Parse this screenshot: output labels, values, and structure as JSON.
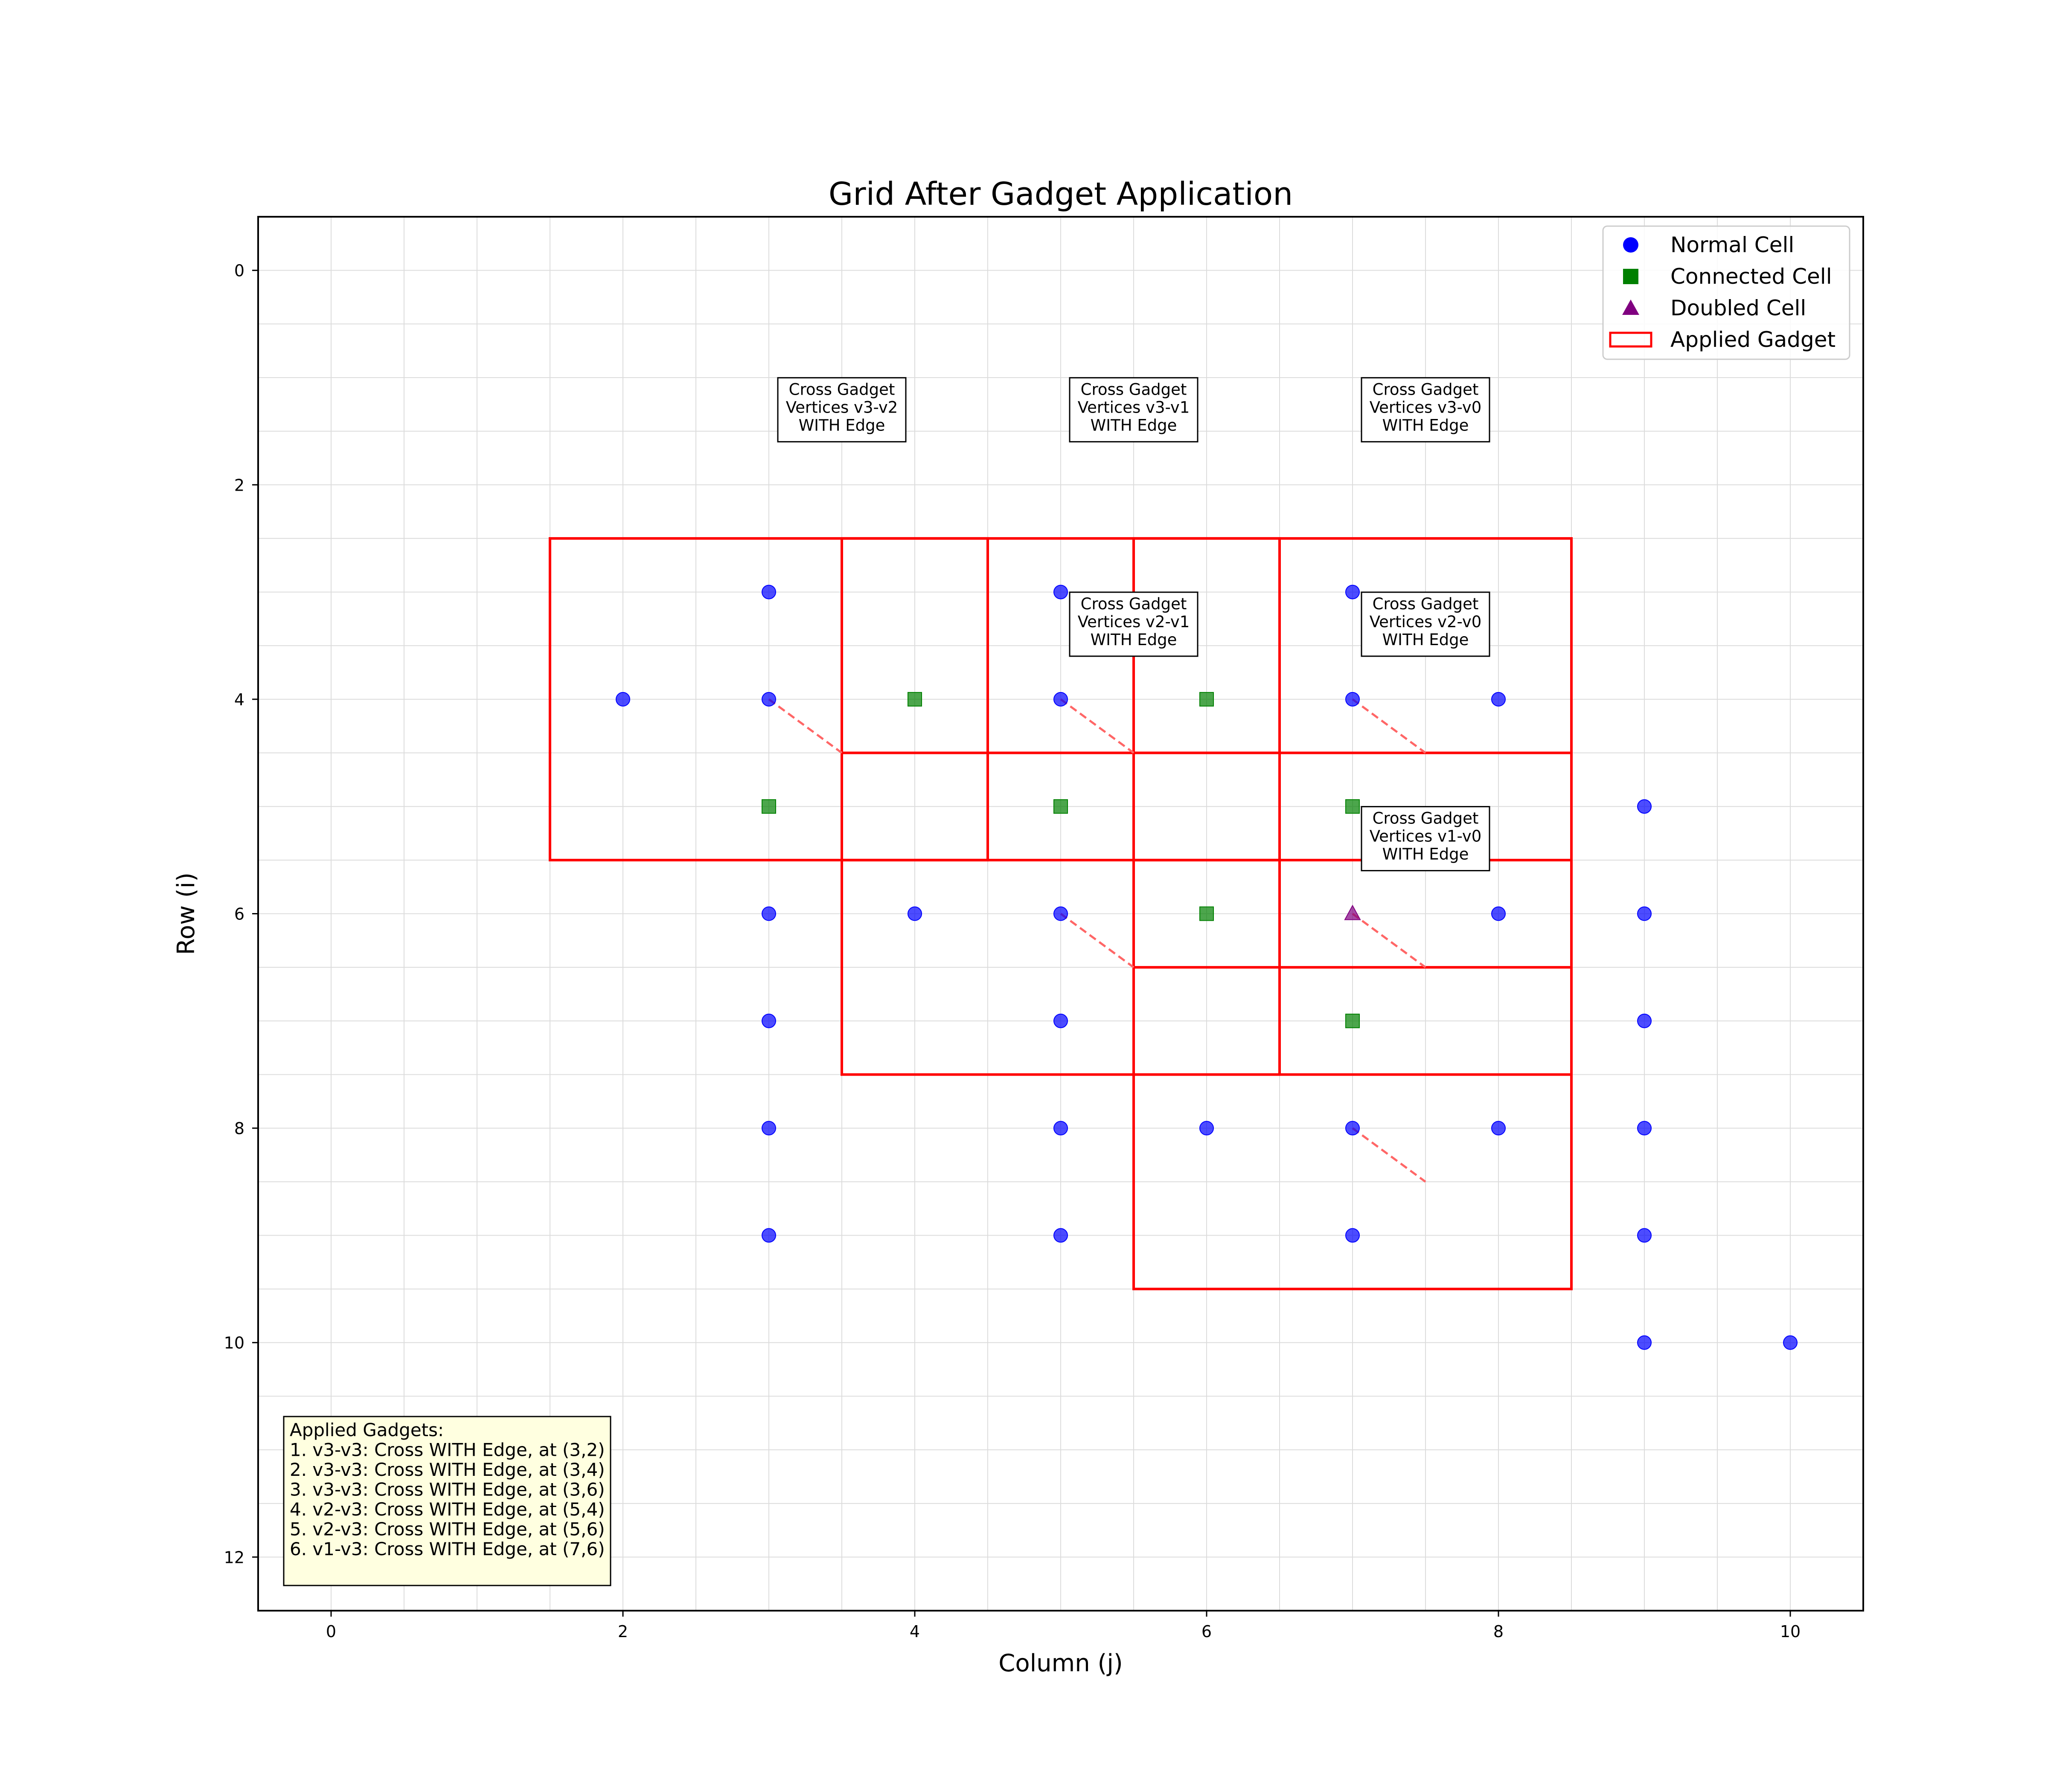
{
  "chart_data": {
    "type": "scatter",
    "title": "Grid After Gadget Application",
    "xlabel": "Column (j)",
    "ylabel": "Row (i)",
    "xlim": [
      -0.5,
      10.5
    ],
    "ylim": [
      12.5,
      -0.5
    ],
    "y_inverted": true,
    "xticks": [
      0,
      2,
      4,
      6,
      8,
      10
    ],
    "yticks": [
      0,
      2,
      4,
      6,
      8,
      10,
      12
    ],
    "grid": true,
    "legend_position": "top-right",
    "colors": {
      "normal": "#0000ff",
      "connected": "#008000",
      "doubled": "#800080",
      "gadget": "#ff0000",
      "edge_line": "#ff6666",
      "info_box_bg": "#ffffe0"
    },
    "legend": [
      {
        "label": "Normal Cell",
        "marker": "circle",
        "color": "#0000ff"
      },
      {
        "label": "Connected Cell",
        "marker": "square",
        "color": "#008000"
      },
      {
        "label": "Doubled Cell",
        "marker": "triangle",
        "color": "#800080"
      },
      {
        "label": "Applied Gadget",
        "marker": "rect-outline",
        "color": "#ff0000"
      }
    ],
    "series": [
      {
        "name": "Normal Cell",
        "marker": "circle",
        "color": "#0000ff",
        "points": [
          [
            3,
            3
          ],
          [
            5,
            3
          ],
          [
            7,
            3
          ],
          [
            2,
            4
          ],
          [
            3,
            4
          ],
          [
            5,
            4
          ],
          [
            7,
            4
          ],
          [
            8,
            4
          ],
          [
            9,
            5
          ],
          [
            3,
            6
          ],
          [
            4,
            6
          ],
          [
            5,
            6
          ],
          [
            8,
            6
          ],
          [
            9,
            6
          ],
          [
            3,
            7
          ],
          [
            5,
            7
          ],
          [
            9,
            7
          ],
          [
            3,
            8
          ],
          [
            5,
            8
          ],
          [
            6,
            8
          ],
          [
            7,
            8
          ],
          [
            8,
            8
          ],
          [
            9,
            8
          ],
          [
            3,
            9
          ],
          [
            5,
            9
          ],
          [
            7,
            9
          ],
          [
            9,
            9
          ],
          [
            9,
            10
          ],
          [
            10,
            10
          ]
        ]
      },
      {
        "name": "Connected Cell",
        "marker": "square",
        "color": "#008000",
        "points": [
          [
            4,
            4
          ],
          [
            6,
            4
          ],
          [
            3,
            5
          ],
          [
            5,
            5
          ],
          [
            7,
            5
          ],
          [
            6,
            6
          ],
          [
            7,
            7
          ]
        ]
      },
      {
        "name": "Doubled Cell",
        "marker": "triangle",
        "color": "#800080",
        "points": [
          [
            7,
            6
          ]
        ]
      }
    ],
    "gadgets": [
      {
        "x0": 1.5,
        "y0": 2.5,
        "x1": 4.5,
        "y1": 5.5
      },
      {
        "x0": 3.5,
        "y0": 2.5,
        "x1": 6.5,
        "y1": 5.5
      },
      {
        "x0": 5.5,
        "y0": 2.5,
        "x1": 8.5,
        "y1": 5.5
      },
      {
        "x0": 3.5,
        "y0": 4.5,
        "x1": 6.5,
        "y1": 7.5
      },
      {
        "x0": 5.5,
        "y0": 4.5,
        "x1": 8.5,
        "y1": 7.5
      },
      {
        "x0": 5.5,
        "y0": 6.5,
        "x1": 8.5,
        "y1": 9.5
      }
    ],
    "edge_lines": [
      {
        "from": [
          3,
          4
        ],
        "to": [
          3.5,
          4.5
        ]
      },
      {
        "from": [
          5,
          4
        ],
        "to": [
          5.5,
          4.5
        ]
      },
      {
        "from": [
          7,
          4
        ],
        "to": [
          7.5,
          4.5
        ]
      },
      {
        "from": [
          5,
          6
        ],
        "to": [
          5.5,
          6.5
        ]
      },
      {
        "from": [
          7,
          6
        ],
        "to": [
          7.5,
          6.5
        ]
      },
      {
        "from": [
          7,
          8
        ],
        "to": [
          7.5,
          8.5
        ]
      }
    ],
    "annotations": [
      {
        "x": 3.5,
        "y": 1.3,
        "lines": [
          "Cross Gadget",
          "Vertices v3-v2",
          "WITH Edge"
        ]
      },
      {
        "x": 5.5,
        "y": 1.3,
        "lines": [
          "Cross Gadget",
          "Vertices v3-v1",
          "WITH Edge"
        ]
      },
      {
        "x": 7.5,
        "y": 1.3,
        "lines": [
          "Cross Gadget",
          "Vertices v3-v0",
          "WITH Edge"
        ]
      },
      {
        "x": 5.5,
        "y": 3.3,
        "lines": [
          "Cross Gadget",
          "Vertices v2-v1",
          "WITH Edge"
        ]
      },
      {
        "x": 7.5,
        "y": 3.3,
        "lines": [
          "Cross Gadget",
          "Vertices v2-v0",
          "WITH Edge"
        ]
      },
      {
        "x": 7.5,
        "y": 5.3,
        "lines": [
          "Cross Gadget",
          "Vertices v1-v0",
          "WITH Edge"
        ]
      }
    ],
    "info_box": {
      "position": "bottom-left",
      "lines": [
        "Applied Gadgets:",
        "1. v3-v3: Cross WITH Edge, at (3,2)",
        "2. v3-v3: Cross WITH Edge, at (3,4)",
        "3. v3-v3: Cross WITH Edge, at (3,6)",
        "4. v2-v3: Cross WITH Edge, at (5,4)",
        "5. v2-v3: Cross WITH Edge, at (5,6)",
        "6. v1-v3: Cross WITH Edge, at (7,6)"
      ]
    }
  }
}
